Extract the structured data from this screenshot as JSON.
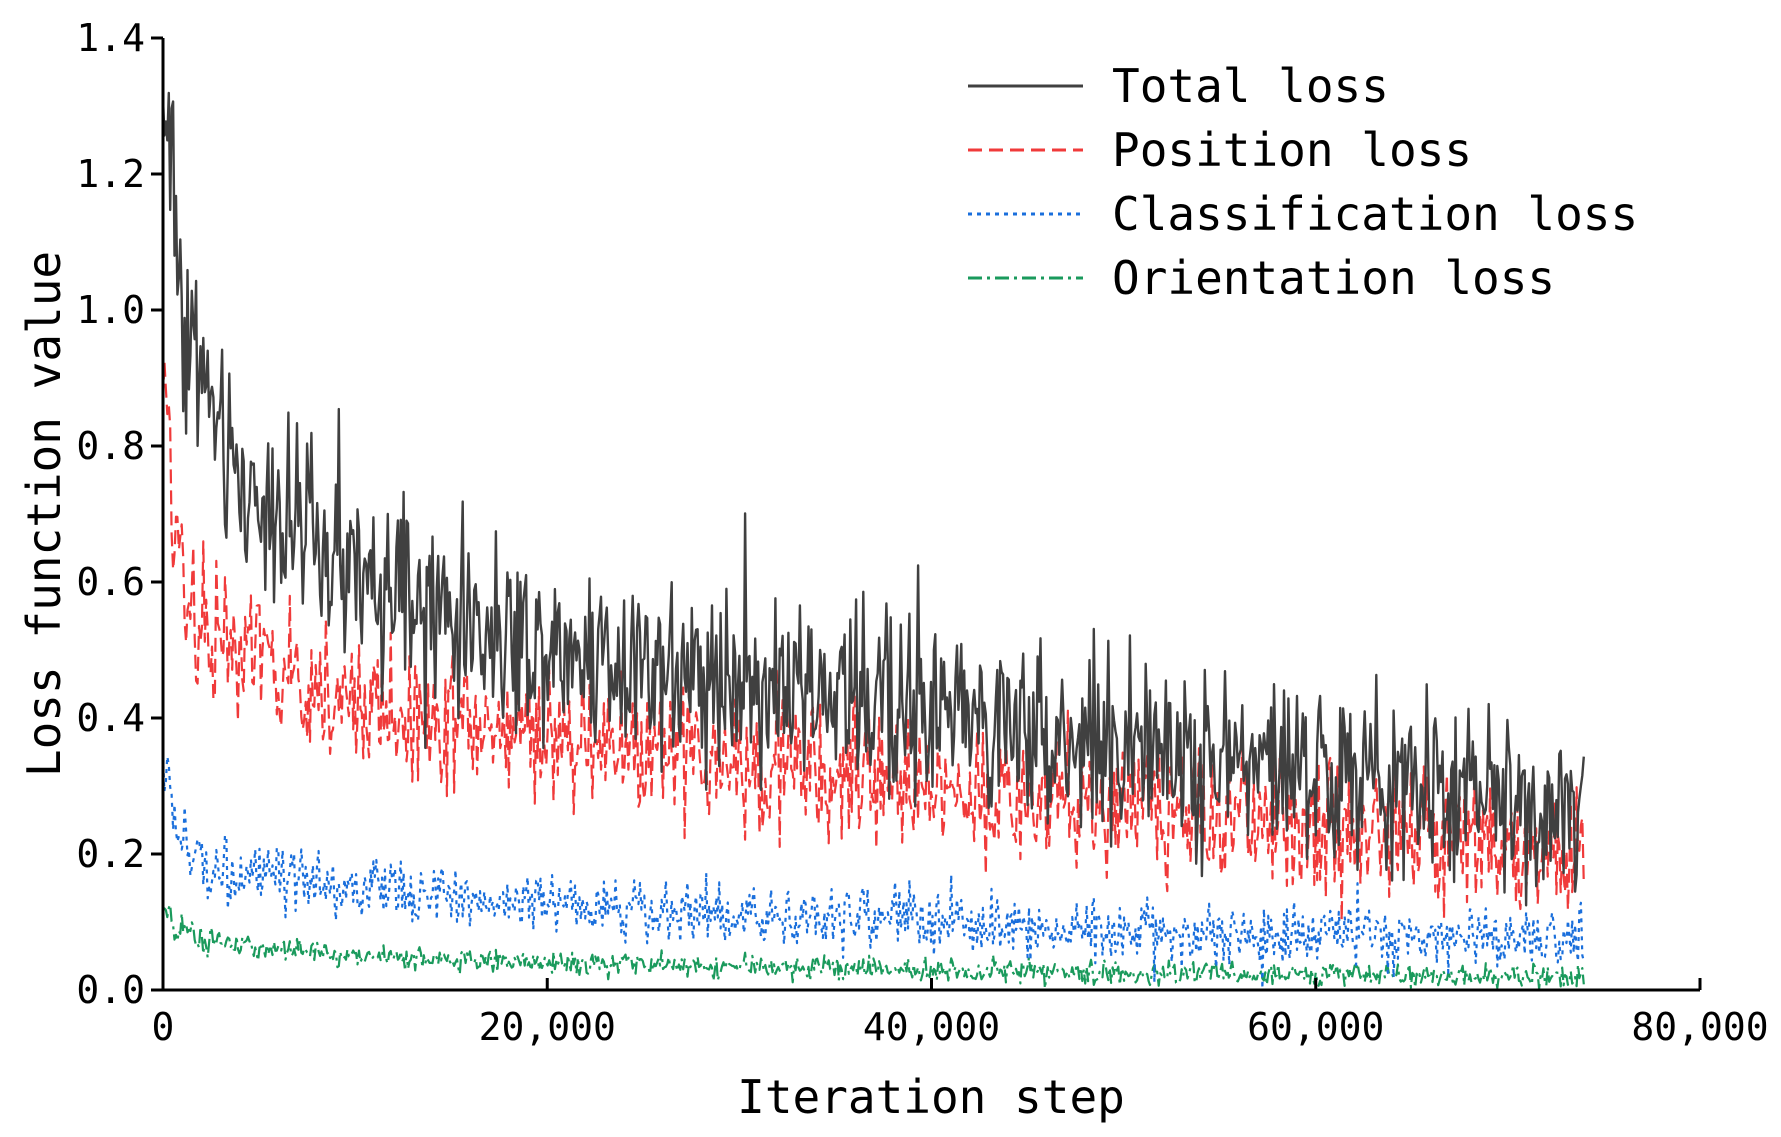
{
  "chart_data": {
    "type": "line",
    "title": "",
    "xlabel": "Iteration step",
    "ylabel": "Loss function value",
    "xlim": [
      0,
      80000
    ],
    "ylim": [
      0,
      1.4
    ],
    "x_ticks": [
      0,
      20000,
      40000,
      60000,
      80000
    ],
    "x_tick_labels": [
      "0",
      "20,000",
      "40,000",
      "60,000",
      "80,000"
    ],
    "y_ticks": [
      0,
      0.2,
      0.4,
      0.6,
      0.8,
      1.0,
      1.2,
      1.4
    ],
    "y_tick_labels": [
      "0.0",
      "0.2",
      "0.4",
      "0.6",
      "0.8",
      "1.0",
      "1.2",
      "1.4"
    ],
    "legend_position": "top-right",
    "series": [
      {
        "name": "Total loss",
        "color": "#404040",
        "style": "solid",
        "x": [
          0,
          300,
          700,
          1200,
          2000,
          3000,
          4000,
          5000,
          6000,
          7000,
          8000,
          9000,
          10000,
          12000,
          14000,
          16000,
          18000,
          20000,
          22000,
          24000,
          26000,
          28000,
          30000,
          32000,
          34000,
          36000,
          38000,
          40000,
          42000,
          44000,
          46000,
          48000,
          50000,
          52000,
          54000,
          56000,
          58000,
          60000,
          62000,
          64000,
          66000,
          68000,
          70000,
          72000,
          74000
        ],
        "values": [
          1.28,
          1.3,
          1.1,
          0.98,
          0.9,
          0.8,
          0.74,
          0.72,
          0.7,
          0.68,
          0.65,
          0.62,
          0.6,
          0.58,
          0.56,
          0.54,
          0.52,
          0.51,
          0.5,
          0.49,
          0.48,
          0.47,
          0.46,
          0.45,
          0.44,
          0.43,
          0.42,
          0.41,
          0.4,
          0.39,
          0.38,
          0.37,
          0.36,
          0.35,
          0.345,
          0.34,
          0.33,
          0.32,
          0.31,
          0.3,
          0.295,
          0.29,
          0.28,
          0.275,
          0.27
        ],
        "noise": 0.065
      },
      {
        "name": "Position loss",
        "color": "#f03a3a",
        "style": "dashed",
        "x": [
          0,
          300,
          700,
          1200,
          2000,
          3000,
          4000,
          5000,
          6000,
          7000,
          8000,
          9000,
          10000,
          12000,
          14000,
          16000,
          18000,
          20000,
          22000,
          24000,
          26000,
          28000,
          30000,
          32000,
          34000,
          36000,
          38000,
          40000,
          42000,
          44000,
          46000,
          48000,
          50000,
          52000,
          54000,
          56000,
          58000,
          60000,
          62000,
          64000,
          66000,
          68000,
          70000,
          72000,
          74000
        ],
        "values": [
          0.85,
          0.82,
          0.68,
          0.6,
          0.55,
          0.52,
          0.5,
          0.48,
          0.46,
          0.45,
          0.44,
          0.43,
          0.42,
          0.41,
          0.4,
          0.39,
          0.38,
          0.37,
          0.36,
          0.355,
          0.35,
          0.34,
          0.33,
          0.325,
          0.32,
          0.31,
          0.305,
          0.3,
          0.29,
          0.285,
          0.28,
          0.275,
          0.27,
          0.26,
          0.255,
          0.25,
          0.245,
          0.24,
          0.235,
          0.23,
          0.225,
          0.22,
          0.215,
          0.21,
          0.205
        ],
        "noise": 0.048
      },
      {
        "name": "Classification loss",
        "color": "#1a6fdc",
        "style": "dotted",
        "x": [
          0,
          300,
          700,
          1200,
          2000,
          3000,
          4000,
          5000,
          6000,
          8000,
          10000,
          12000,
          14000,
          16000,
          18000,
          20000,
          24000,
          28000,
          32000,
          36000,
          40000,
          44000,
          48000,
          52000,
          56000,
          60000,
          64000,
          68000,
          72000,
          74000
        ],
        "values": [
          0.34,
          0.3,
          0.24,
          0.2,
          0.19,
          0.18,
          0.17,
          0.165,
          0.16,
          0.155,
          0.15,
          0.145,
          0.14,
          0.135,
          0.13,
          0.125,
          0.12,
          0.115,
          0.11,
          0.105,
          0.1,
          0.095,
          0.09,
          0.085,
          0.08,
          0.078,
          0.075,
          0.072,
          0.07,
          0.068
        ],
        "noise": 0.022
      },
      {
        "name": "Orientation loss",
        "color": "#1a9a5c",
        "style": "dashdot",
        "x": [
          0,
          300,
          700,
          1200,
          2000,
          3000,
          4000,
          6000,
          8000,
          10000,
          12000,
          14000,
          16000,
          18000,
          20000,
          24000,
          28000,
          32000,
          36000,
          40000,
          44000,
          48000,
          52000,
          56000,
          60000,
          64000,
          68000,
          72000,
          74000
        ],
        "values": [
          0.12,
          0.105,
          0.09,
          0.08,
          0.075,
          0.07,
          0.065,
          0.06,
          0.055,
          0.05,
          0.048,
          0.046,
          0.044,
          0.042,
          0.04,
          0.037,
          0.035,
          0.032,
          0.03,
          0.028,
          0.026,
          0.025,
          0.024,
          0.023,
          0.022,
          0.021,
          0.02,
          0.02,
          0.019
        ],
        "noise": 0.008
      }
    ]
  }
}
